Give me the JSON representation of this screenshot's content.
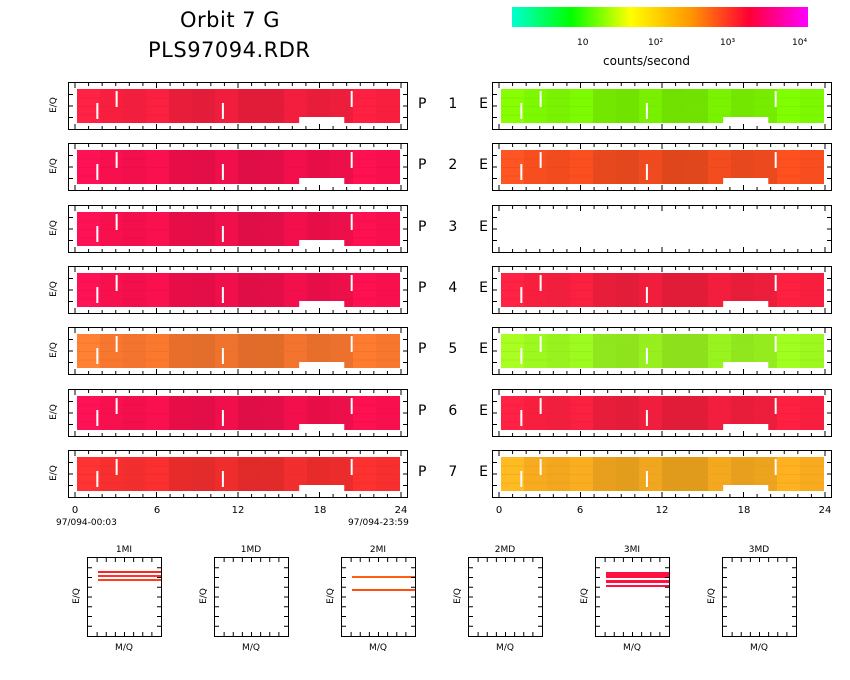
{
  "title_line1": "Orbit 7 G",
  "title_line2": "PLS97094.RDR",
  "colorbar": {
    "ticks": [
      "10",
      "10²",
      "10³",
      "10⁴"
    ],
    "label": "counts/second",
    "colors": [
      "#00ffd0",
      "#00ff00",
      "#ffff00",
      "#ff9900",
      "#ff0033",
      "#ff00ff"
    ]
  },
  "ylabel": "E/Q",
  "x_ticks": [
    "0",
    "6",
    "12",
    "18",
    "24"
  ],
  "start_time": "97/094-00:03",
  "end_time": "97/094-23:59",
  "chart_data": {
    "type": "heatmap",
    "xlim": [
      0,
      24
    ],
    "xlabel": "",
    "ylabel": "E/Q",
    "colorscale_label": "counts/second",
    "rows": [
      {
        "label": "P 1 E",
        "p_color": "#ff2040",
        "e_color": "#7fff00",
        "e_present": true
      },
      {
        "label": "P 2 E",
        "p_color": "#ff1050",
        "e_color": "#ff5020",
        "e_present": true
      },
      {
        "label": "P 3 E",
        "p_color": "#ff1050",
        "e_color": null,
        "e_present": false
      },
      {
        "label": "P 4 E",
        "p_color": "#ff1050",
        "e_color": "#ff2040",
        "e_present": true
      },
      {
        "label": "P 5 E",
        "p_color": "#ff7a30",
        "e_color": "#a0ff20",
        "e_present": true
      },
      {
        "label": "P 6 E",
        "p_color": "#ff1050",
        "e_color": "#ff2040",
        "e_present": true
      },
      {
        "label": "P 7 E",
        "p_color": "#ff3030",
        "e_color": "#ffb020",
        "e_present": true
      }
    ]
  },
  "mq_panels": [
    {
      "title": "1MI",
      "xlabel": "M/Q",
      "ylabel": "E/Q"
    },
    {
      "title": "1MD",
      "xlabel": "M/Q",
      "ylabel": "E/Q"
    },
    {
      "title": "2MI",
      "xlabel": "M/Q",
      "ylabel": "E/Q"
    },
    {
      "title": "2MD",
      "xlabel": "M/Q",
      "ylabel": "E/Q"
    },
    {
      "title": "3MI",
      "xlabel": "M/Q",
      "ylabel": "E/Q"
    },
    {
      "title": "3MD",
      "xlabel": "M/Q",
      "ylabel": "E/Q"
    }
  ]
}
